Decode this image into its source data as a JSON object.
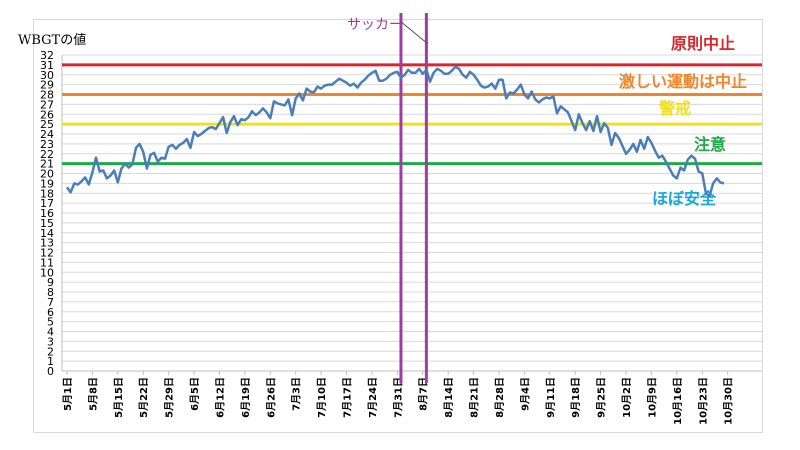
{
  "chart_data": {
    "type": "line",
    "ylabel": "WBGTの値",
    "ylim": [
      0,
      32
    ],
    "y_ticks": [
      0,
      1,
      2,
      3,
      4,
      5,
      6,
      7,
      8,
      9,
      10,
      11,
      12,
      13,
      14,
      15,
      16,
      17,
      18,
      19,
      20,
      21,
      22,
      23,
      24,
      25,
      26,
      27,
      28,
      29,
      30,
      31,
      32
    ],
    "x_tick_labels": [
      "5月1日",
      "5月8日",
      "5月15日",
      "5月22日",
      "5月29日",
      "6月5日",
      "6月12日",
      "6月19日",
      "6月26日",
      "7月3日",
      "7月10日",
      "7月17日",
      "7月24日",
      "7月31日",
      "8月7日",
      "8月14日",
      "8月21日",
      "8月28日",
      "9月4日",
      "9月11日",
      "9月18日",
      "9月25日",
      "10月2日",
      "10月9日",
      "10月16日",
      "10月23日",
      "10月30日"
    ],
    "x_start": "5月1日",
    "series": [
      {
        "color": "#4a7ebb",
        "values": [
          18.6,
          18.1,
          19.0,
          18.9,
          19.2,
          19.6,
          18.9,
          20.1,
          21.6,
          20.2,
          20.3,
          19.5,
          19.8,
          20.3,
          19.1,
          20.5,
          21.0,
          20.6,
          20.9,
          22.6,
          23.0,
          22.2,
          20.5,
          21.9,
          22.1,
          21.2,
          21.6,
          21.5,
          22.7,
          22.9,
          22.5,
          22.9,
          23.1,
          23.5,
          22.6,
          24.2,
          23.8,
          24.0,
          24.3,
          24.6,
          24.7,
          24.5,
          25.1,
          25.7,
          24.1,
          25.2,
          25.8,
          24.9,
          25.5,
          25.4,
          25.7,
          26.3,
          25.9,
          26.2,
          26.6,
          26.2,
          25.6,
          27.3,
          27.1,
          27.0,
          26.9,
          27.5,
          25.9,
          27.6,
          28.1,
          27.4,
          28.6,
          28.3,
          28.2,
          28.8,
          28.6,
          28.9,
          29.0,
          29.0,
          29.3,
          29.6,
          29.4,
          29.2,
          28.9,
          29.1,
          28.7,
          29.2,
          29.5,
          29.9,
          30.2,
          30.4,
          29.4,
          29.4,
          29.6,
          30.0,
          30.2,
          30.3,
          29.7,
          30.0,
          30.5,
          30.2,
          30.2,
          30.6,
          30.1,
          30.5,
          29.3,
          30.2,
          30.6,
          30.4,
          30.1,
          30.1,
          30.4,
          30.8,
          30.6,
          30.0,
          29.7,
          30.3,
          30.0,
          29.5,
          28.9,
          28.7,
          28.8,
          29.1,
          28.6,
          29.5,
          29.5,
          27.6,
          28.2,
          28.1,
          28.5,
          29.0,
          28.0,
          27.6,
          28.3,
          27.5,
          27.2,
          27.5,
          27.7,
          27.6,
          27.8,
          26.1,
          26.8,
          26.5,
          26.2,
          25.3,
          24.4,
          26.0,
          25.1,
          24.4,
          25.3,
          24.3,
          25.8,
          24.2,
          25.1,
          24.6,
          22.9,
          24.1,
          23.6,
          22.8,
          22.0,
          22.4,
          23.0,
          22.2,
          23.4,
          22.5,
          23.7,
          23.1,
          22.3,
          21.6,
          21.8,
          21.2,
          20.5,
          19.8,
          19.5,
          20.6,
          20.3,
          21.4,
          21.8,
          21.5,
          20.2,
          20.0,
          18.0,
          17.7,
          19.0,
          19.5,
          19.1,
          19.0
        ]
      }
    ],
    "thresholds": [
      {
        "label": "原則中止",
        "value": 31,
        "color": "#d9262c"
      },
      {
        "label": "激しい運動は中止",
        "value": 28,
        "color": "#f0862c"
      },
      {
        "label": "警戒",
        "value": 25,
        "color": "#f0e020"
      },
      {
        "label": "注意",
        "value": 21,
        "color": "#22a84a"
      },
      {
        "label": "ほぼ安全",
        "value": null,
        "color": "#1aa7d9"
      }
    ],
    "period": {
      "label": "サッカー",
      "from": "8月1日",
      "to": "8月8日",
      "color": "#9b3fa0"
    },
    "grid": "horizontal"
  }
}
